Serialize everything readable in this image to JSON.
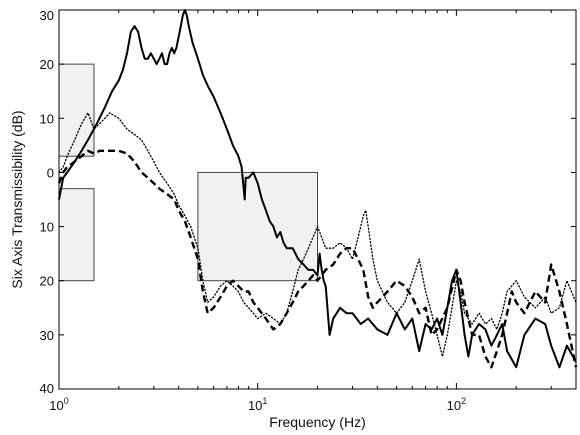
{
  "chart_data": {
    "type": "line",
    "xlabel": "Frequency (Hz)",
    "ylabel": "Six Axis Transmissibility (dB)",
    "xscale": "log",
    "xlim": [
      1,
      400
    ],
    "ylim": [
      -40,
      30
    ],
    "grid": false,
    "legend": "none",
    "x_ticks": [
      {
        "value": 1,
        "base": "10",
        "exp": "0"
      },
      {
        "value": 10,
        "base": "10",
        "exp": "1"
      },
      {
        "value": 100,
        "base": "10",
        "exp": "2"
      }
    ],
    "y_ticks": [
      {
        "value": 30,
        "label": "30"
      },
      {
        "value": 20,
        "label": "20"
      },
      {
        "value": 10,
        "label": "10"
      },
      {
        "value": 0,
        "label": "0"
      },
      {
        "value": -10,
        "label": "10"
      },
      {
        "value": -20,
        "label": "20"
      },
      {
        "value": -30,
        "label": "30"
      },
      {
        "value": -40,
        "label": "40"
      }
    ],
    "regions": [
      {
        "x": [
          1,
          1.5
        ],
        "y": [
          3,
          20
        ]
      },
      {
        "x": [
          1,
          1.5
        ],
        "y": [
          -20,
          -3
        ]
      },
      {
        "x": [
          5,
          20
        ],
        "y": [
          -20,
          0
        ]
      }
    ],
    "series": [
      {
        "style": "solid",
        "points": [
          [
            1,
            -5
          ],
          [
            1.05,
            -1
          ],
          [
            1.1,
            0
          ],
          [
            1.2,
            2
          ],
          [
            1.3,
            4
          ],
          [
            1.4,
            6
          ],
          [
            1.55,
            9
          ],
          [
            1.7,
            12
          ],
          [
            1.85,
            15
          ],
          [
            2,
            17
          ],
          [
            2.1,
            19
          ],
          [
            2.2,
            22
          ],
          [
            2.3,
            26
          ],
          [
            2.4,
            27
          ],
          [
            2.5,
            26
          ],
          [
            2.6,
            23
          ],
          [
            2.7,
            21
          ],
          [
            2.8,
            21
          ],
          [
            2.9,
            22
          ],
          [
            3,
            21
          ],
          [
            3.1,
            20
          ],
          [
            3.2,
            21
          ],
          [
            3.3,
            22
          ],
          [
            3.4,
            20
          ],
          [
            3.5,
            20
          ],
          [
            3.6,
            22
          ],
          [
            3.7,
            23
          ],
          [
            3.8,
            22
          ],
          [
            3.9,
            23
          ],
          [
            4,
            25
          ],
          [
            4.1,
            27
          ],
          [
            4.2,
            29
          ],
          [
            4.3,
            30
          ],
          [
            4.4,
            29
          ],
          [
            4.5,
            27
          ],
          [
            4.7,
            24
          ],
          [
            5,
            21
          ],
          [
            5.3,
            18
          ],
          [
            5.6,
            16
          ],
          [
            6,
            14
          ],
          [
            6.5,
            11
          ],
          [
            7,
            8
          ],
          [
            7.5,
            5
          ],
          [
            8,
            3
          ],
          [
            8.3,
            1
          ],
          [
            8.5,
            -3
          ],
          [
            8.6,
            -5
          ],
          [
            8.7,
            -1
          ],
          [
            9,
            -1
          ],
          [
            9.5,
            0
          ],
          [
            10,
            -2
          ],
          [
            10.5,
            -5
          ],
          [
            11,
            -7
          ],
          [
            11.5,
            -9
          ],
          [
            12,
            -10
          ],
          [
            12.5,
            -12
          ],
          [
            13,
            -11
          ],
          [
            13.5,
            -13
          ],
          [
            14,
            -14
          ],
          [
            15,
            -14
          ],
          [
            16,
            -16
          ],
          [
            17,
            -17
          ],
          [
            18,
            -18
          ],
          [
            19,
            -18
          ],
          [
            20,
            -19
          ],
          [
            20.5,
            -15
          ],
          [
            21,
            -18
          ],
          [
            21.5,
            -20
          ],
          [
            22,
            -21
          ],
          [
            23,
            -30
          ],
          [
            24,
            -27
          ],
          [
            26,
            -25
          ],
          [
            28,
            -26
          ],
          [
            30,
            -26
          ],
          [
            33,
            -28
          ],
          [
            36,
            -27
          ],
          [
            40,
            -29
          ],
          [
            45,
            -30
          ],
          [
            50,
            -26
          ],
          [
            55,
            -29
          ],
          [
            60,
            -27
          ],
          [
            65,
            -33
          ],
          [
            70,
            -28
          ],
          [
            75,
            -29
          ],
          [
            80,
            -27
          ],
          [
            85,
            -30
          ],
          [
            90,
            -25
          ],
          [
            95,
            -20
          ],
          [
            100,
            -18
          ],
          [
            105,
            -24
          ],
          [
            110,
            -30
          ],
          [
            115,
            -34
          ],
          [
            120,
            -30
          ],
          [
            130,
            -28
          ],
          [
            140,
            -29
          ],
          [
            150,
            -32
          ],
          [
            160,
            -30
          ],
          [
            170,
            -28
          ],
          [
            180,
            -33
          ],
          [
            200,
            -36
          ],
          [
            220,
            -30
          ],
          [
            250,
            -27
          ],
          [
            280,
            -28
          ],
          [
            300,
            -32
          ],
          [
            330,
            -36
          ],
          [
            360,
            -32
          ],
          [
            400,
            -35
          ]
        ]
      },
      {
        "style": "dashed",
        "points": [
          [
            1,
            -2
          ],
          [
            1.05,
            0
          ],
          [
            1.1,
            1
          ],
          [
            1.2,
            2
          ],
          [
            1.3,
            3
          ],
          [
            1.4,
            4
          ],
          [
            1.5,
            3.5
          ],
          [
            1.6,
            4
          ],
          [
            1.7,
            4
          ],
          [
            1.8,
            4
          ],
          [
            2,
            4
          ],
          [
            2.2,
            3.5
          ],
          [
            2.4,
            2
          ],
          [
            2.6,
            0
          ],
          [
            2.8,
            -1
          ],
          [
            3,
            -2
          ],
          [
            3.2,
            -3
          ],
          [
            3.5,
            -4
          ],
          [
            3.8,
            -5
          ],
          [
            4,
            -7
          ],
          [
            4.3,
            -9
          ],
          [
            4.6,
            -12
          ],
          [
            5,
            -16
          ],
          [
            5.3,
            -22
          ],
          [
            5.6,
            -26
          ],
          [
            6,
            -25
          ],
          [
            6.5,
            -23
          ],
          [
            7,
            -21
          ],
          [
            7.5,
            -20
          ],
          [
            8,
            -21
          ],
          [
            8.5,
            -22
          ],
          [
            9,
            -22
          ],
          [
            9.5,
            -24
          ],
          [
            10,
            -25
          ],
          [
            11,
            -27
          ],
          [
            12,
            -29
          ],
          [
            13,
            -28
          ],
          [
            14,
            -26
          ],
          [
            15,
            -24
          ],
          [
            16,
            -22
          ],
          [
            17,
            -21
          ],
          [
            18,
            -20
          ],
          [
            19,
            -19
          ],
          [
            20,
            -20
          ],
          [
            21,
            -19
          ],
          [
            22,
            -18
          ],
          [
            24,
            -17
          ],
          [
            26,
            -15
          ],
          [
            28,
            -14
          ],
          [
            30,
            -14
          ],
          [
            32,
            -16
          ],
          [
            34,
            -18
          ],
          [
            36,
            -23
          ],
          [
            38,
            -25
          ],
          [
            40,
            -24
          ],
          [
            45,
            -22
          ],
          [
            50,
            -20
          ],
          [
            55,
            -21
          ],
          [
            60,
            -23
          ],
          [
            65,
            -26
          ],
          [
            70,
            -25
          ],
          [
            75,
            -30
          ],
          [
            80,
            -29
          ],
          [
            90,
            -25
          ],
          [
            100,
            -18
          ],
          [
            105,
            -20
          ],
          [
            110,
            -24
          ],
          [
            120,
            -30
          ],
          [
            130,
            -30
          ],
          [
            140,
            -34
          ],
          [
            150,
            -36
          ],
          [
            160,
            -33
          ],
          [
            170,
            -30
          ],
          [
            180,
            -26
          ],
          [
            190,
            -22
          ],
          [
            200,
            -24
          ],
          [
            220,
            -26
          ],
          [
            250,
            -22
          ],
          [
            280,
            -24
          ],
          [
            300,
            -17
          ],
          [
            330,
            -22
          ],
          [
            360,
            -28
          ],
          [
            400,
            -36
          ]
        ]
      },
      {
        "style": "dotted",
        "points": [
          [
            1,
            0
          ],
          [
            1.05,
            1
          ],
          [
            1.1,
            3
          ],
          [
            1.2,
            6
          ],
          [
            1.3,
            9
          ],
          [
            1.4,
            11
          ],
          [
            1.5,
            8
          ],
          [
            1.6,
            9
          ],
          [
            1.7,
            10
          ],
          [
            1.8,
            11
          ],
          [
            2,
            10
          ],
          [
            2.2,
            8
          ],
          [
            2.4,
            7
          ],
          [
            2.6,
            6
          ],
          [
            2.8,
            4
          ],
          [
            3,
            2
          ],
          [
            3.2,
            0
          ],
          [
            3.5,
            -2
          ],
          [
            3.8,
            -4
          ],
          [
            4,
            -6
          ],
          [
            4.3,
            -8
          ],
          [
            4.6,
            -10
          ],
          [
            5,
            -14
          ],
          [
            5.3,
            -20
          ],
          [
            5.6,
            -24
          ],
          [
            6,
            -23
          ],
          [
            6.5,
            -21
          ],
          [
            7,
            -20
          ],
          [
            7.5,
            -21
          ],
          [
            8,
            -22
          ],
          [
            8.5,
            -24
          ],
          [
            9,
            -25
          ],
          [
            9.5,
            -26
          ],
          [
            10,
            -27
          ],
          [
            11,
            -26
          ],
          [
            12,
            -27
          ],
          [
            13,
            -28
          ],
          [
            14,
            -26
          ],
          [
            15,
            -22
          ],
          [
            16,
            -18
          ],
          [
            17,
            -16
          ],
          [
            18,
            -14
          ],
          [
            20,
            -10
          ],
          [
            21,
            -12
          ],
          [
            22,
            -14
          ],
          [
            24,
            -14
          ],
          [
            26,
            -13
          ],
          [
            28,
            -14
          ],
          [
            30,
            -16
          ],
          [
            32,
            -12
          ],
          [
            34,
            -8
          ],
          [
            35,
            -7
          ],
          [
            36,
            -10
          ],
          [
            38,
            -16
          ],
          [
            40,
            -20
          ],
          [
            45,
            -24
          ],
          [
            50,
            -26
          ],
          [
            55,
            -24
          ],
          [
            60,
            -20
          ],
          [
            65,
            -16
          ],
          [
            70,
            -22
          ],
          [
            75,
            -26
          ],
          [
            80,
            -30
          ],
          [
            85,
            -34
          ],
          [
            90,
            -30
          ],
          [
            95,
            -25
          ],
          [
            100,
            -20
          ],
          [
            105,
            -22
          ],
          [
            110,
            -26
          ],
          [
            120,
            -28
          ],
          [
            130,
            -26
          ],
          [
            140,
            -28
          ],
          [
            150,
            -27
          ],
          [
            160,
            -29
          ],
          [
            170,
            -26
          ],
          [
            180,
            -22
          ],
          [
            200,
            -20
          ],
          [
            220,
            -23
          ],
          [
            250,
            -25
          ],
          [
            280,
            -23
          ],
          [
            300,
            -26
          ],
          [
            330,
            -25
          ],
          [
            360,
            -20
          ],
          [
            400,
            -24
          ]
        ]
      }
    ]
  }
}
